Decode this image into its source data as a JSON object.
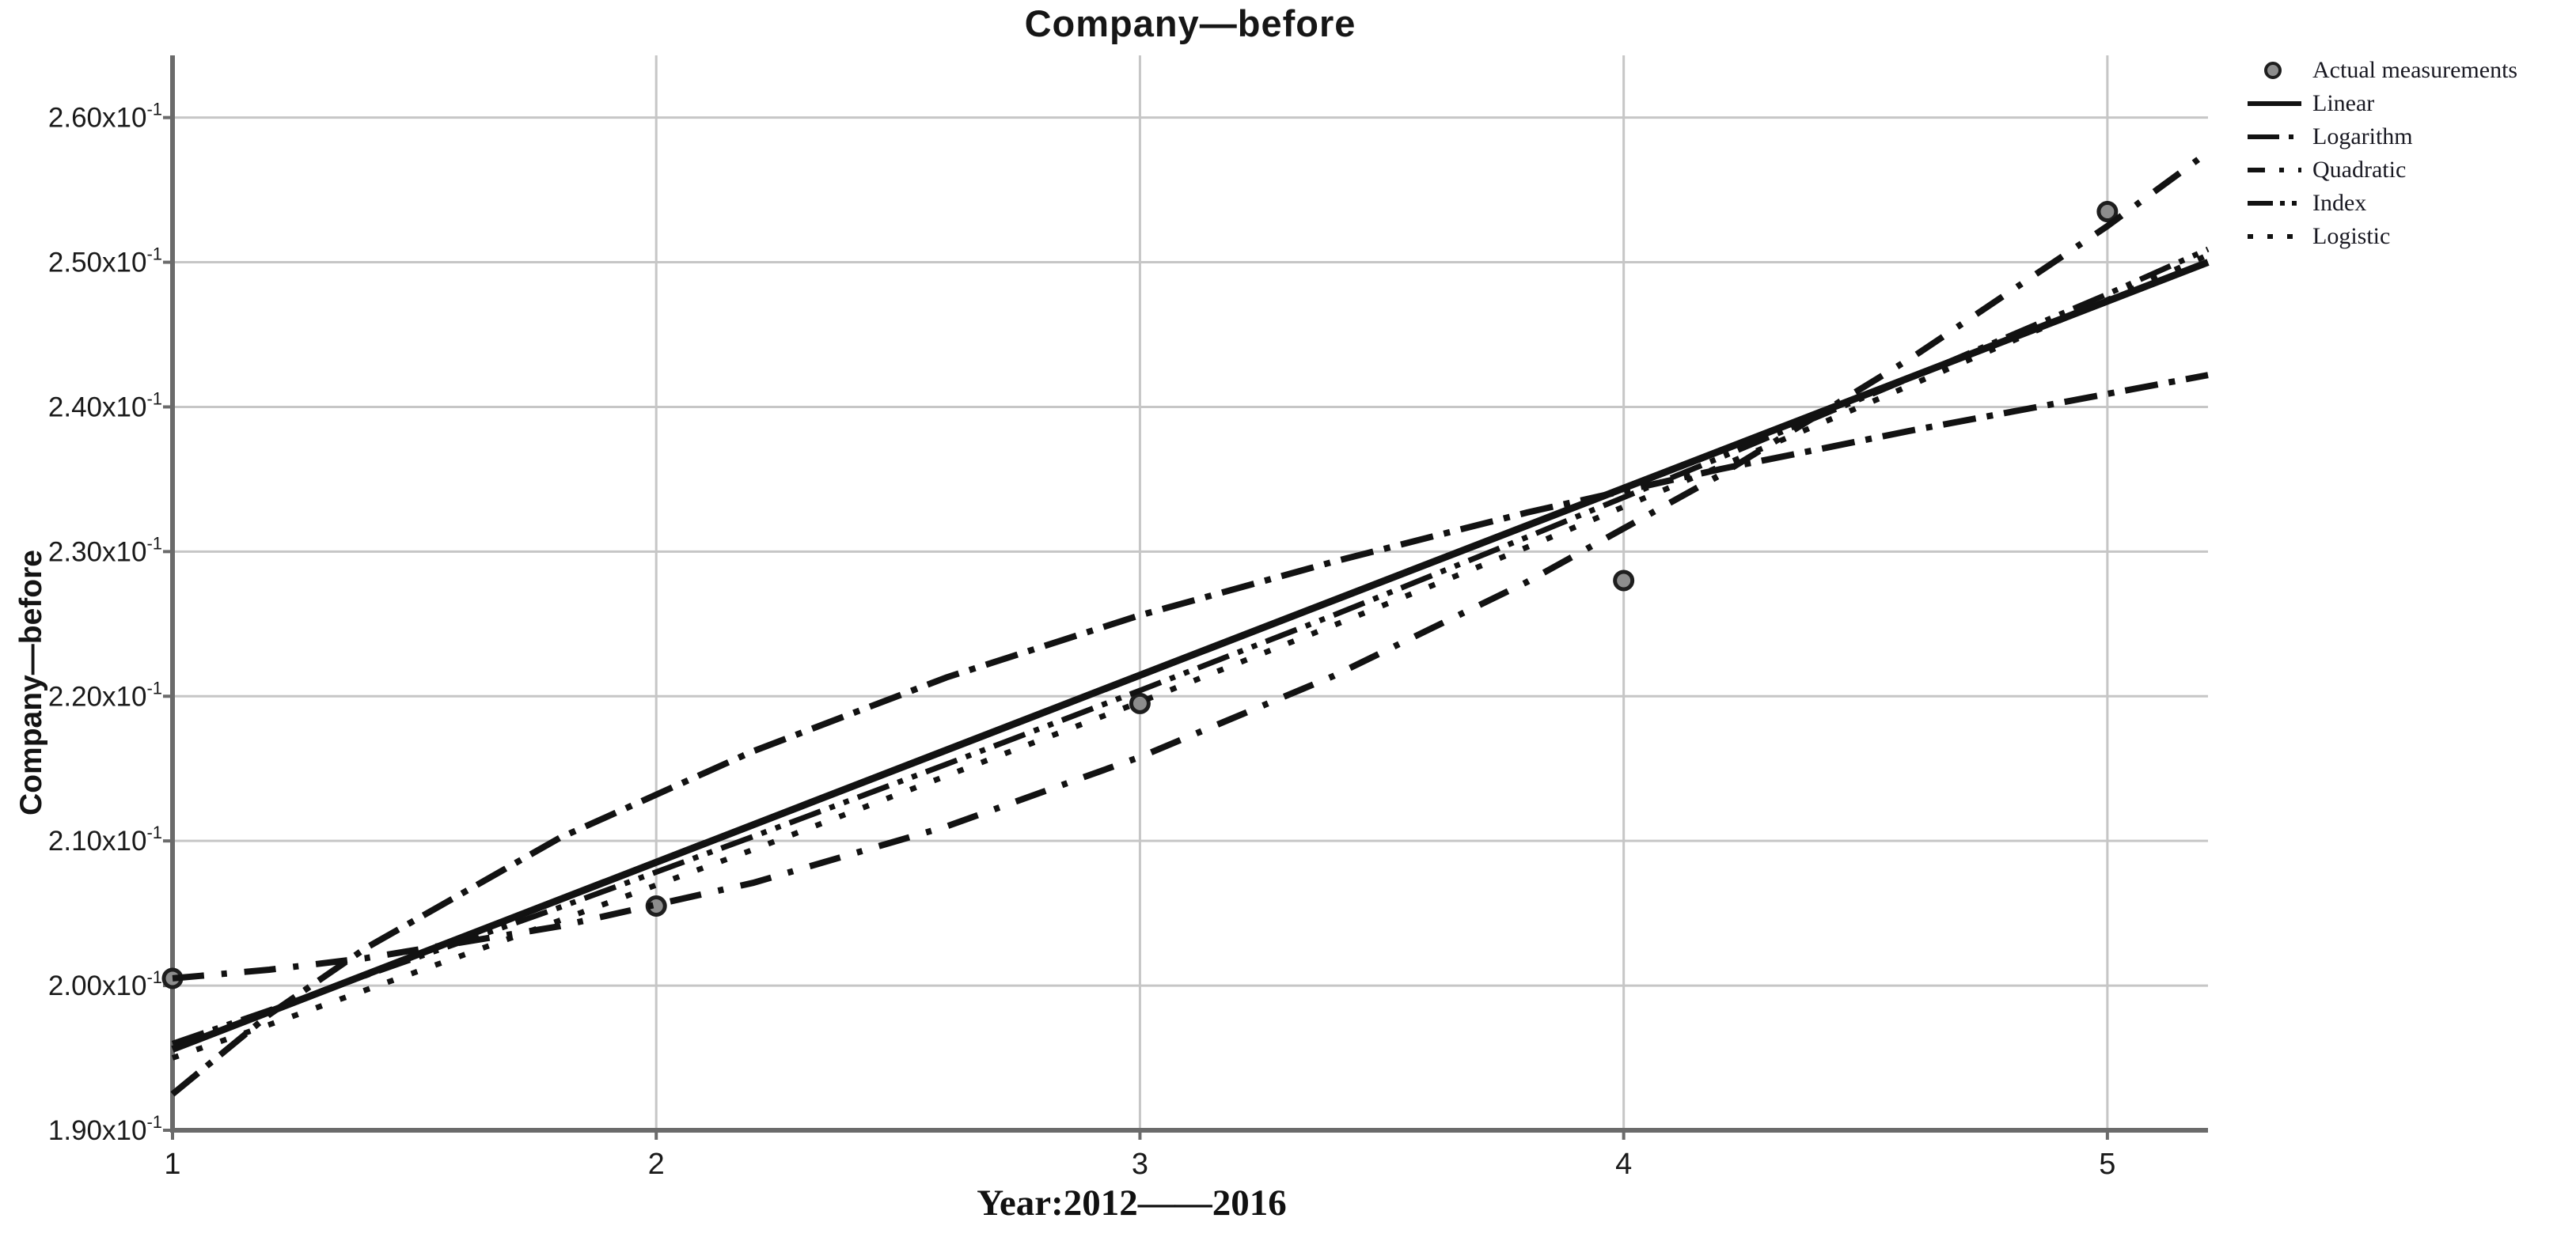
{
  "chart_data": {
    "type": "line",
    "title": "Company—before",
    "xlabel": "Year:2012——2016",
    "ylabel": "Company—before",
    "value_scale_note": "y values are in units of 10^-1",
    "x_range": [
      1,
      5.208
    ],
    "y_range": [
      1.9,
      2.643
    ],
    "grid": true,
    "legend_position": "top-right",
    "x_ticks": [
      {
        "label": "1",
        "value": 1
      },
      {
        "label": "2",
        "value": 2
      },
      {
        "label": "3",
        "value": 3
      },
      {
        "label": "4",
        "value": 4
      },
      {
        "label": "5",
        "value": 5
      }
    ],
    "y_ticks": [
      {
        "base": "1.90x10",
        "sup": "-1",
        "value": 1.9
      },
      {
        "base": "2.00x10",
        "sup": "-1",
        "value": 2.0
      },
      {
        "base": "2.10x10",
        "sup": "-1",
        "value": 2.1
      },
      {
        "base": "2.20x10",
        "sup": "-1",
        "value": 2.2
      },
      {
        "base": "2.30x10",
        "sup": "-1",
        "value": 2.3
      },
      {
        "base": "2.40x10",
        "sup": "-1",
        "value": 2.4
      },
      {
        "base": "2.50x10",
        "sup": "-1",
        "value": 2.5
      },
      {
        "base": "2.60x10",
        "sup": "-1",
        "value": 2.6
      }
    ],
    "colors": {
      "line": "#121212",
      "marker_fill": "#8d8d8d",
      "marker_edge": "#1e1e1e",
      "gridline": "#c6c6c6",
      "axis": "#6b6b6b",
      "text": "#1a1a1a"
    },
    "series": [
      {
        "name": "Actual measurements",
        "type": "scatter",
        "marker": "circle",
        "points": [
          [
            1,
            2.005
          ],
          [
            2,
            2.055
          ],
          [
            3,
            2.195
          ],
          [
            4,
            2.28
          ],
          [
            5,
            2.535
          ]
        ]
      },
      {
        "name": "Linear",
        "type": "line",
        "dash": "solid",
        "points": [
          [
            1,
            1.956
          ],
          [
            5.208,
            2.5
          ]
        ]
      },
      {
        "name": "Logarithm",
        "type": "line",
        "dash": "dash-dot",
        "points": [
          [
            1,
            1.925
          ],
          [
            1.2,
            1.98
          ],
          [
            1.4,
            2.026
          ],
          [
            1.8,
            2.102
          ],
          [
            2.2,
            2.162
          ],
          [
            2.6,
            2.213
          ],
          [
            3.0,
            2.256
          ],
          [
            3.4,
            2.293
          ],
          [
            3.8,
            2.327
          ],
          [
            4.2,
            2.357
          ],
          [
            4.6,
            2.384
          ],
          [
            5.0,
            2.409
          ],
          [
            5.208,
            2.422
          ]
        ]
      },
      {
        "name": "Quadratic",
        "type": "line",
        "dash": "dashed",
        "points": [
          [
            1,
            2.005
          ],
          [
            1.2,
            2.011
          ],
          [
            1.4,
            2.019
          ],
          [
            1.8,
            2.041
          ],
          [
            2.2,
            2.071
          ],
          [
            2.6,
            2.11
          ],
          [
            3.0,
            2.158
          ],
          [
            3.4,
            2.214
          ],
          [
            3.8,
            2.279
          ],
          [
            4.2,
            2.353
          ],
          [
            4.6,
            2.435
          ],
          [
            5.0,
            2.525
          ],
          [
            5.208,
            2.576
          ]
        ]
      },
      {
        "name": "Index",
        "type": "line",
        "dash": "dash-dot-dot",
        "points": [
          [
            1,
            1.96
          ],
          [
            1.2,
            1.983
          ],
          [
            1.4,
            2.007
          ],
          [
            1.8,
            2.054
          ],
          [
            2.2,
            2.103
          ],
          [
            2.6,
            2.153
          ],
          [
            3.0,
            2.204
          ],
          [
            3.4,
            2.256
          ],
          [
            3.8,
            2.31
          ],
          [
            4.2,
            2.365
          ],
          [
            4.6,
            2.421
          ],
          [
            5.0,
            2.478
          ],
          [
            5.208,
            2.509
          ]
        ]
      },
      {
        "name": "Logistic",
        "type": "line",
        "dash": "dotted",
        "points": [
          [
            1,
            1.95
          ],
          [
            1.2,
            1.973
          ],
          [
            1.4,
            1.997
          ],
          [
            1.8,
            2.045
          ],
          [
            2.2,
            2.094
          ],
          [
            2.6,
            2.145
          ],
          [
            3.0,
            2.196
          ],
          [
            3.4,
            2.249
          ],
          [
            3.8,
            2.303
          ],
          [
            4.2,
            2.359
          ],
          [
            4.6,
            2.416
          ],
          [
            5.0,
            2.474
          ],
          [
            5.208,
            2.505
          ]
        ]
      }
    ]
  }
}
